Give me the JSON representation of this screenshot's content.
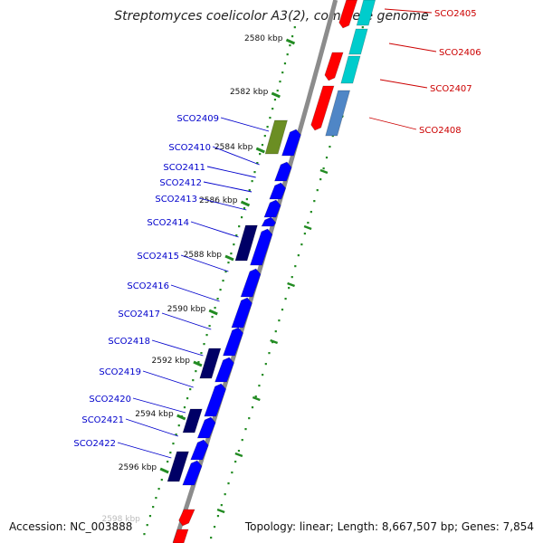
{
  "title": "Streptomyces coelicolor A3(2), complete genome",
  "footer": {
    "accession": "Accession: NC_003888",
    "summary": "Topology: linear; Length: 8,667,507 bp; Genes: 7,854"
  },
  "colors": {
    "forward_cds": "#0000ff",
    "reverse_cds": "#ff0000",
    "forward_dark": "#000066",
    "forward_olive": "#6b8e23",
    "reverse_cyan": "#00cccc",
    "reverse_steel": "#4f86c6",
    "kbp_ticks": "#228b22",
    "backbone": "#8c8c8c",
    "label_forward": "#0000cc",
    "label_reverse": "#cc0000"
  },
  "kbp_labels": [
    "2580 kbp",
    "2582 kbp",
    "2584 kbp",
    "2586 kbp",
    "2588 kbp",
    "2590 kbp",
    "2592 kbp",
    "2594 kbp",
    "2596 kbp"
  ],
  "forward_genes": [
    "SCO2409",
    "SCO2410",
    "SCO2411",
    "SCO2412",
    "SCO2413",
    "SCO2414",
    "SCO2415",
    "SCO2416",
    "SCO2417",
    "SCO2418",
    "SCO2419",
    "SCO2420",
    "SCO2421",
    "SCO2422"
  ],
  "reverse_genes": [
    "SCO2405",
    "SCO2406",
    "SCO2407",
    "SCO2408"
  ]
}
